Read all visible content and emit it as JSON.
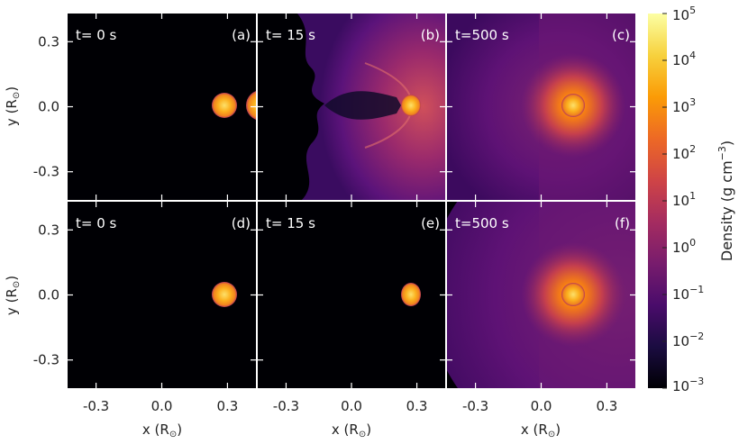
{
  "chart_data": {
    "type": "heatmap",
    "x_ticks": [
      "-0.3",
      "0.0",
      "0.3"
    ],
    "y_ticks": [
      "0.3",
      "0.0",
      "-0.3"
    ],
    "xlabel": "x (R",
    "ylabel": "y (R",
    "sun_symbol": "⊙",
    "xlim": [
      -0.43,
      0.43
    ],
    "ylim": [
      -0.43,
      0.43
    ],
    "panels": [
      {
        "time": "t= 0 s",
        "tag": "(a)",
        "row": 0,
        "col": 0
      },
      {
        "time": "t= 15 s",
        "tag": "(b)",
        "row": 0,
        "col": 1
      },
      {
        "time": "t=500 s",
        "tag": "(c)",
        "row": 0,
        "col": 2
      },
      {
        "time": "t= 0 s",
        "tag": "(d)",
        "row": 1,
        "col": 0
      },
      {
        "time": "t= 15 s",
        "tag": "(e)",
        "row": 1,
        "col": 1
      },
      {
        "time": "t=500 s",
        "tag": "(f)",
        "row": 1,
        "col": 2
      }
    ],
    "colorbar": {
      "label": "Density (g cm",
      "label_exponent": "−3",
      "label_close": ")",
      "log_range": [
        -3,
        5
      ],
      "ticks": [
        {
          "base": "10",
          "exp": "5",
          "value": 5
        },
        {
          "base": "10",
          "exp": "4",
          "value": 4
        },
        {
          "base": "10",
          "exp": "3",
          "value": 3
        },
        {
          "base": "10",
          "exp": "2",
          "value": 2
        },
        {
          "base": "10",
          "exp": "1",
          "value": 1
        },
        {
          "base": "10",
          "exp": "0",
          "value": 0
        },
        {
          "base": "10",
          "exp": "−1",
          "value": -1
        },
        {
          "base": "10",
          "exp": "−2",
          "value": -2
        },
        {
          "base": "10",
          "exp": "−3",
          "value": -3
        }
      ],
      "colors": [
        "#000004",
        "#1b0c41",
        "#4a0c6b",
        "#781c6d",
        "#a52c60",
        "#cf4446",
        "#ed6925",
        "#fb9b06",
        "#f7d13d",
        "#fcffa4"
      ]
    }
  }
}
